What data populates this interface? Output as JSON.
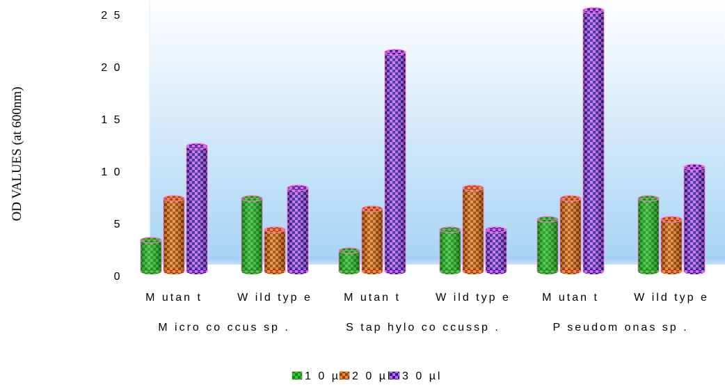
{
  "chart_data": {
    "type": "bar",
    "ylabel": "OD VALUES (at 600nm)",
    "ylim": [
      0,
      25
    ],
    "y_ticks": [
      "0",
      "5",
      "1 0",
      "1 5",
      "2 0",
      "2 5"
    ],
    "categories": [
      "M utan t",
      "W ild  typ e",
      "M utan t",
      "W ild  typ e",
      "M utan t",
      "W ild  typ e"
    ],
    "groups": [
      "M icro co ccus  sp .",
      "S tap hylo co ccussp .",
      "P seudom onas  sp ."
    ],
    "series": [
      {
        "name": "1 0  µl",
        "values": [
          3,
          7,
          2,
          4,
          5,
          7
        ],
        "color": "#22bb22",
        "pattern": "checker-green"
      },
      {
        "name": "2 0  µl",
        "values": [
          7,
          4,
          6,
          8,
          7,
          5
        ],
        "color": "#e07010",
        "pattern": "checker-orange"
      },
      {
        "name": "3 0  µl",
        "values": [
          12,
          8,
          21,
          4,
          25,
          10
        ],
        "color": "#8a2be2",
        "pattern": "checker-purple"
      }
    ],
    "legend_position": "bottom-center",
    "grid": false
  }
}
